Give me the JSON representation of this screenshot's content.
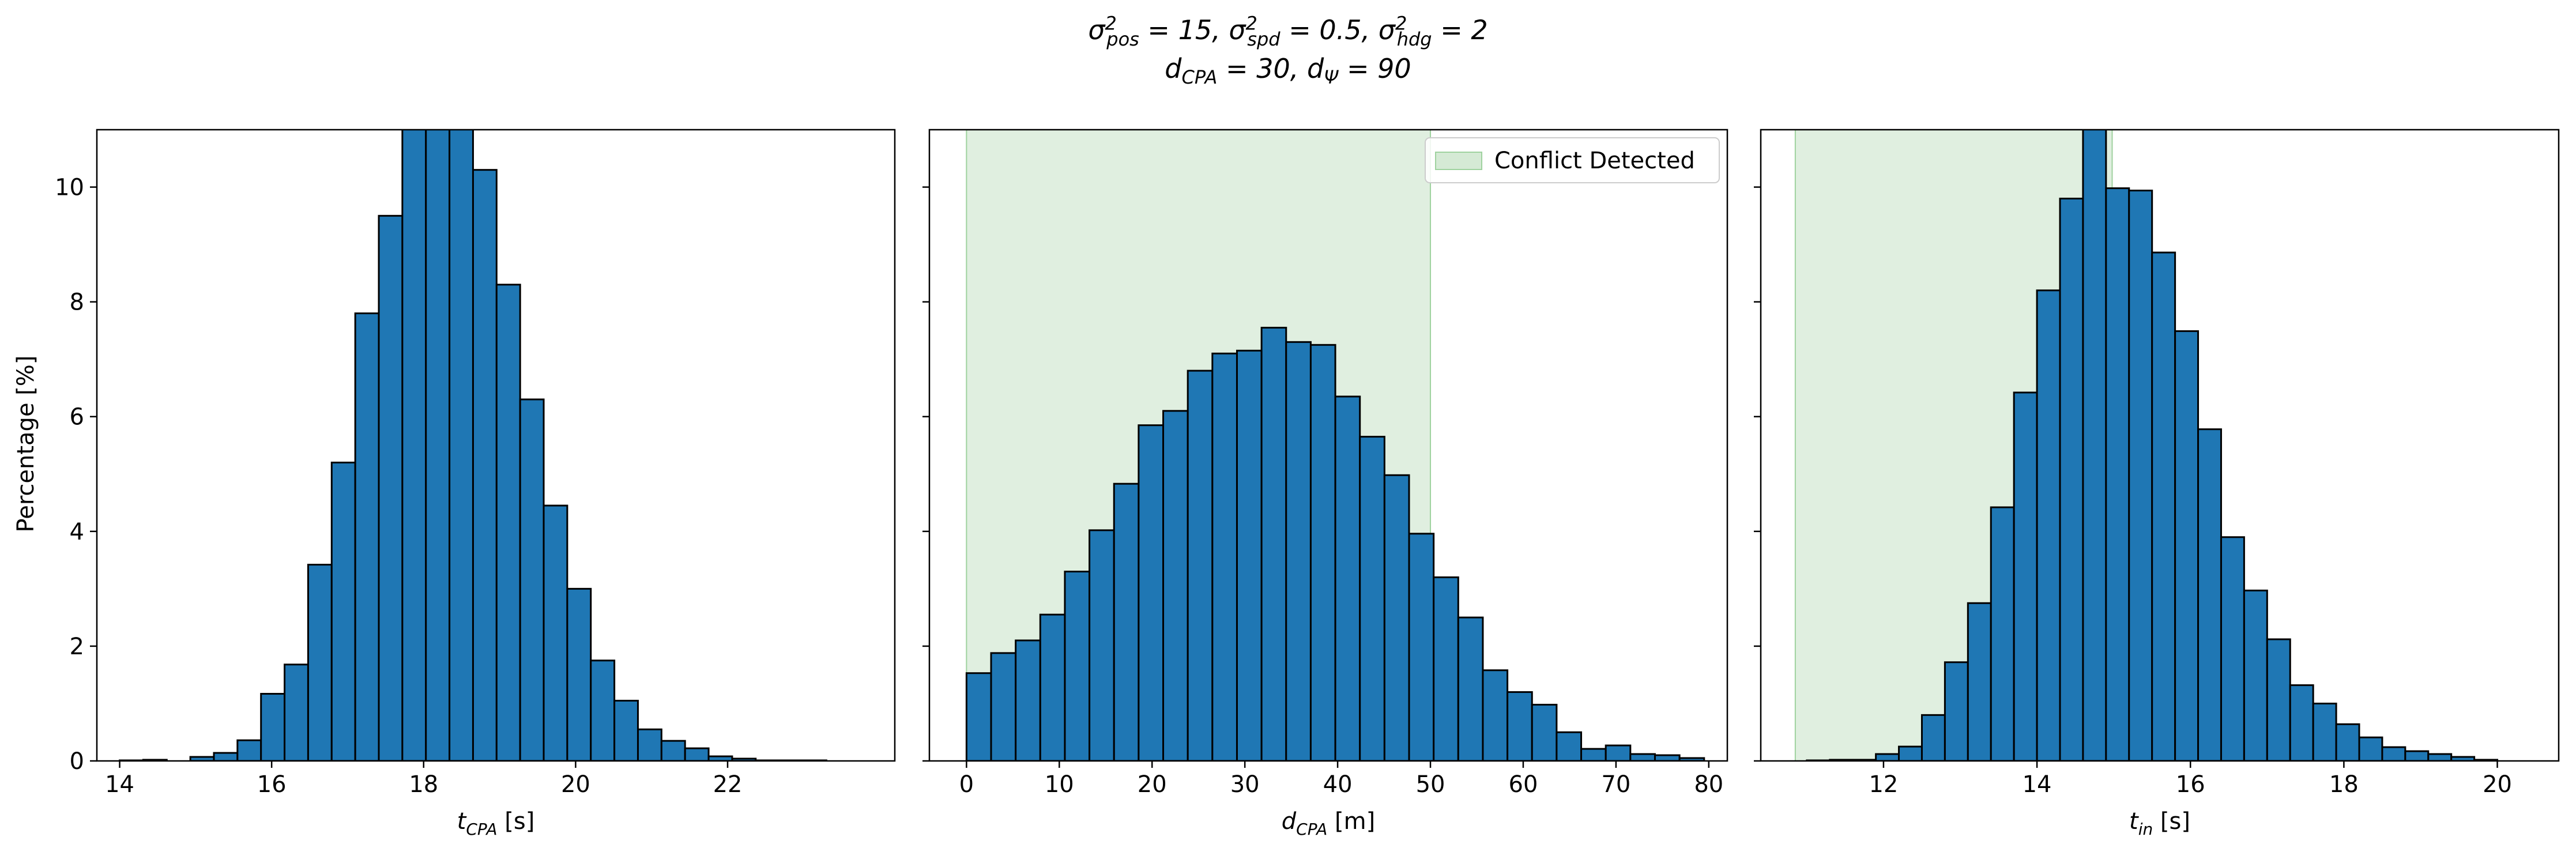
{
  "figure": {
    "title_line1": "σ²pos = 15, σ²spd = 0.5, σ²hdg = 2",
    "title_line2": "dCPA = 30, dΨ = 90",
    "ylabel": "Percentage [%]",
    "bar_color": "#1f77b4",
    "edge_color": "#000000",
    "region_color": "#d5ead5"
  },
  "chart_data": [
    {
      "type": "bar",
      "xlabel": "tCPA [s]",
      "ylabel": "Percentage [%]",
      "xlim": [
        13.7,
        24.2
      ],
      "ylim": [
        0,
        11
      ],
      "xticks": [
        14,
        16,
        18,
        20,
        22
      ],
      "yticks": [
        0,
        2,
        4,
        6,
        8,
        10
      ],
      "bin_start": 14.0,
      "bin_width": 0.31,
      "values": [
        0.01,
        0.02,
        0.0,
        0.07,
        0.14,
        0.36,
        1.17,
        1.68,
        3.42,
        5.2,
        7.8,
        9.5,
        11.5,
        11.7,
        11.3,
        10.3,
        8.3,
        6.3,
        4.45,
        3.0,
        1.75,
        1.05,
        0.55,
        0.35,
        0.22,
        0.08,
        0.04,
        0.01,
        0.01,
        0.01
      ],
      "legend": null
    },
    {
      "type": "bar",
      "xlabel": "dCPA [m]",
      "xlim": [
        -4,
        82
      ],
      "ylim": [
        0,
        11
      ],
      "xticks": [
        0,
        10,
        20,
        30,
        40,
        50,
        60,
        70,
        80
      ],
      "yticks": [
        0,
        2,
        4,
        6,
        8,
        10
      ],
      "bin_start": 0.0,
      "bin_width": 2.65,
      "values": [
        1.53,
        1.88,
        2.1,
        2.55,
        3.3,
        4.02,
        4.83,
        5.85,
        6.1,
        6.8,
        7.1,
        7.15,
        7.55,
        7.3,
        7.25,
        6.35,
        5.65,
        4.98,
        3.96,
        3.2,
        2.5,
        1.58,
        1.2,
        0.98,
        0.5,
        0.21,
        0.27,
        0.12,
        0.1,
        0.05
      ],
      "shaded_region": [
        0,
        50
      ],
      "legend": {
        "label": "Conflict Detected",
        "position": "top-right"
      }
    },
    {
      "type": "bar",
      "xlabel": "tin [s]",
      "xlim": [
        10.4,
        20.8
      ],
      "ylim": [
        0,
        11
      ],
      "xticks": [
        12,
        14,
        16,
        18,
        20
      ],
      "yticks": [
        0,
        2,
        4,
        6,
        8,
        10
      ],
      "bin_start": 11.0,
      "bin_width": 0.3,
      "values": [
        0.01,
        0.02,
        0.02,
        0.12,
        0.25,
        0.8,
        1.72,
        2.75,
        4.42,
        6.42,
        8.2,
        9.8,
        11.2,
        9.98,
        9.94,
        8.86,
        7.49,
        5.78,
        3.9,
        2.97,
        2.12,
        1.32,
        1.0,
        0.64,
        0.41,
        0.24,
        0.17,
        0.12,
        0.07,
        0.02
      ],
      "shaded_region": [
        10.85,
        14.98
      ],
      "legend": null
    }
  ]
}
